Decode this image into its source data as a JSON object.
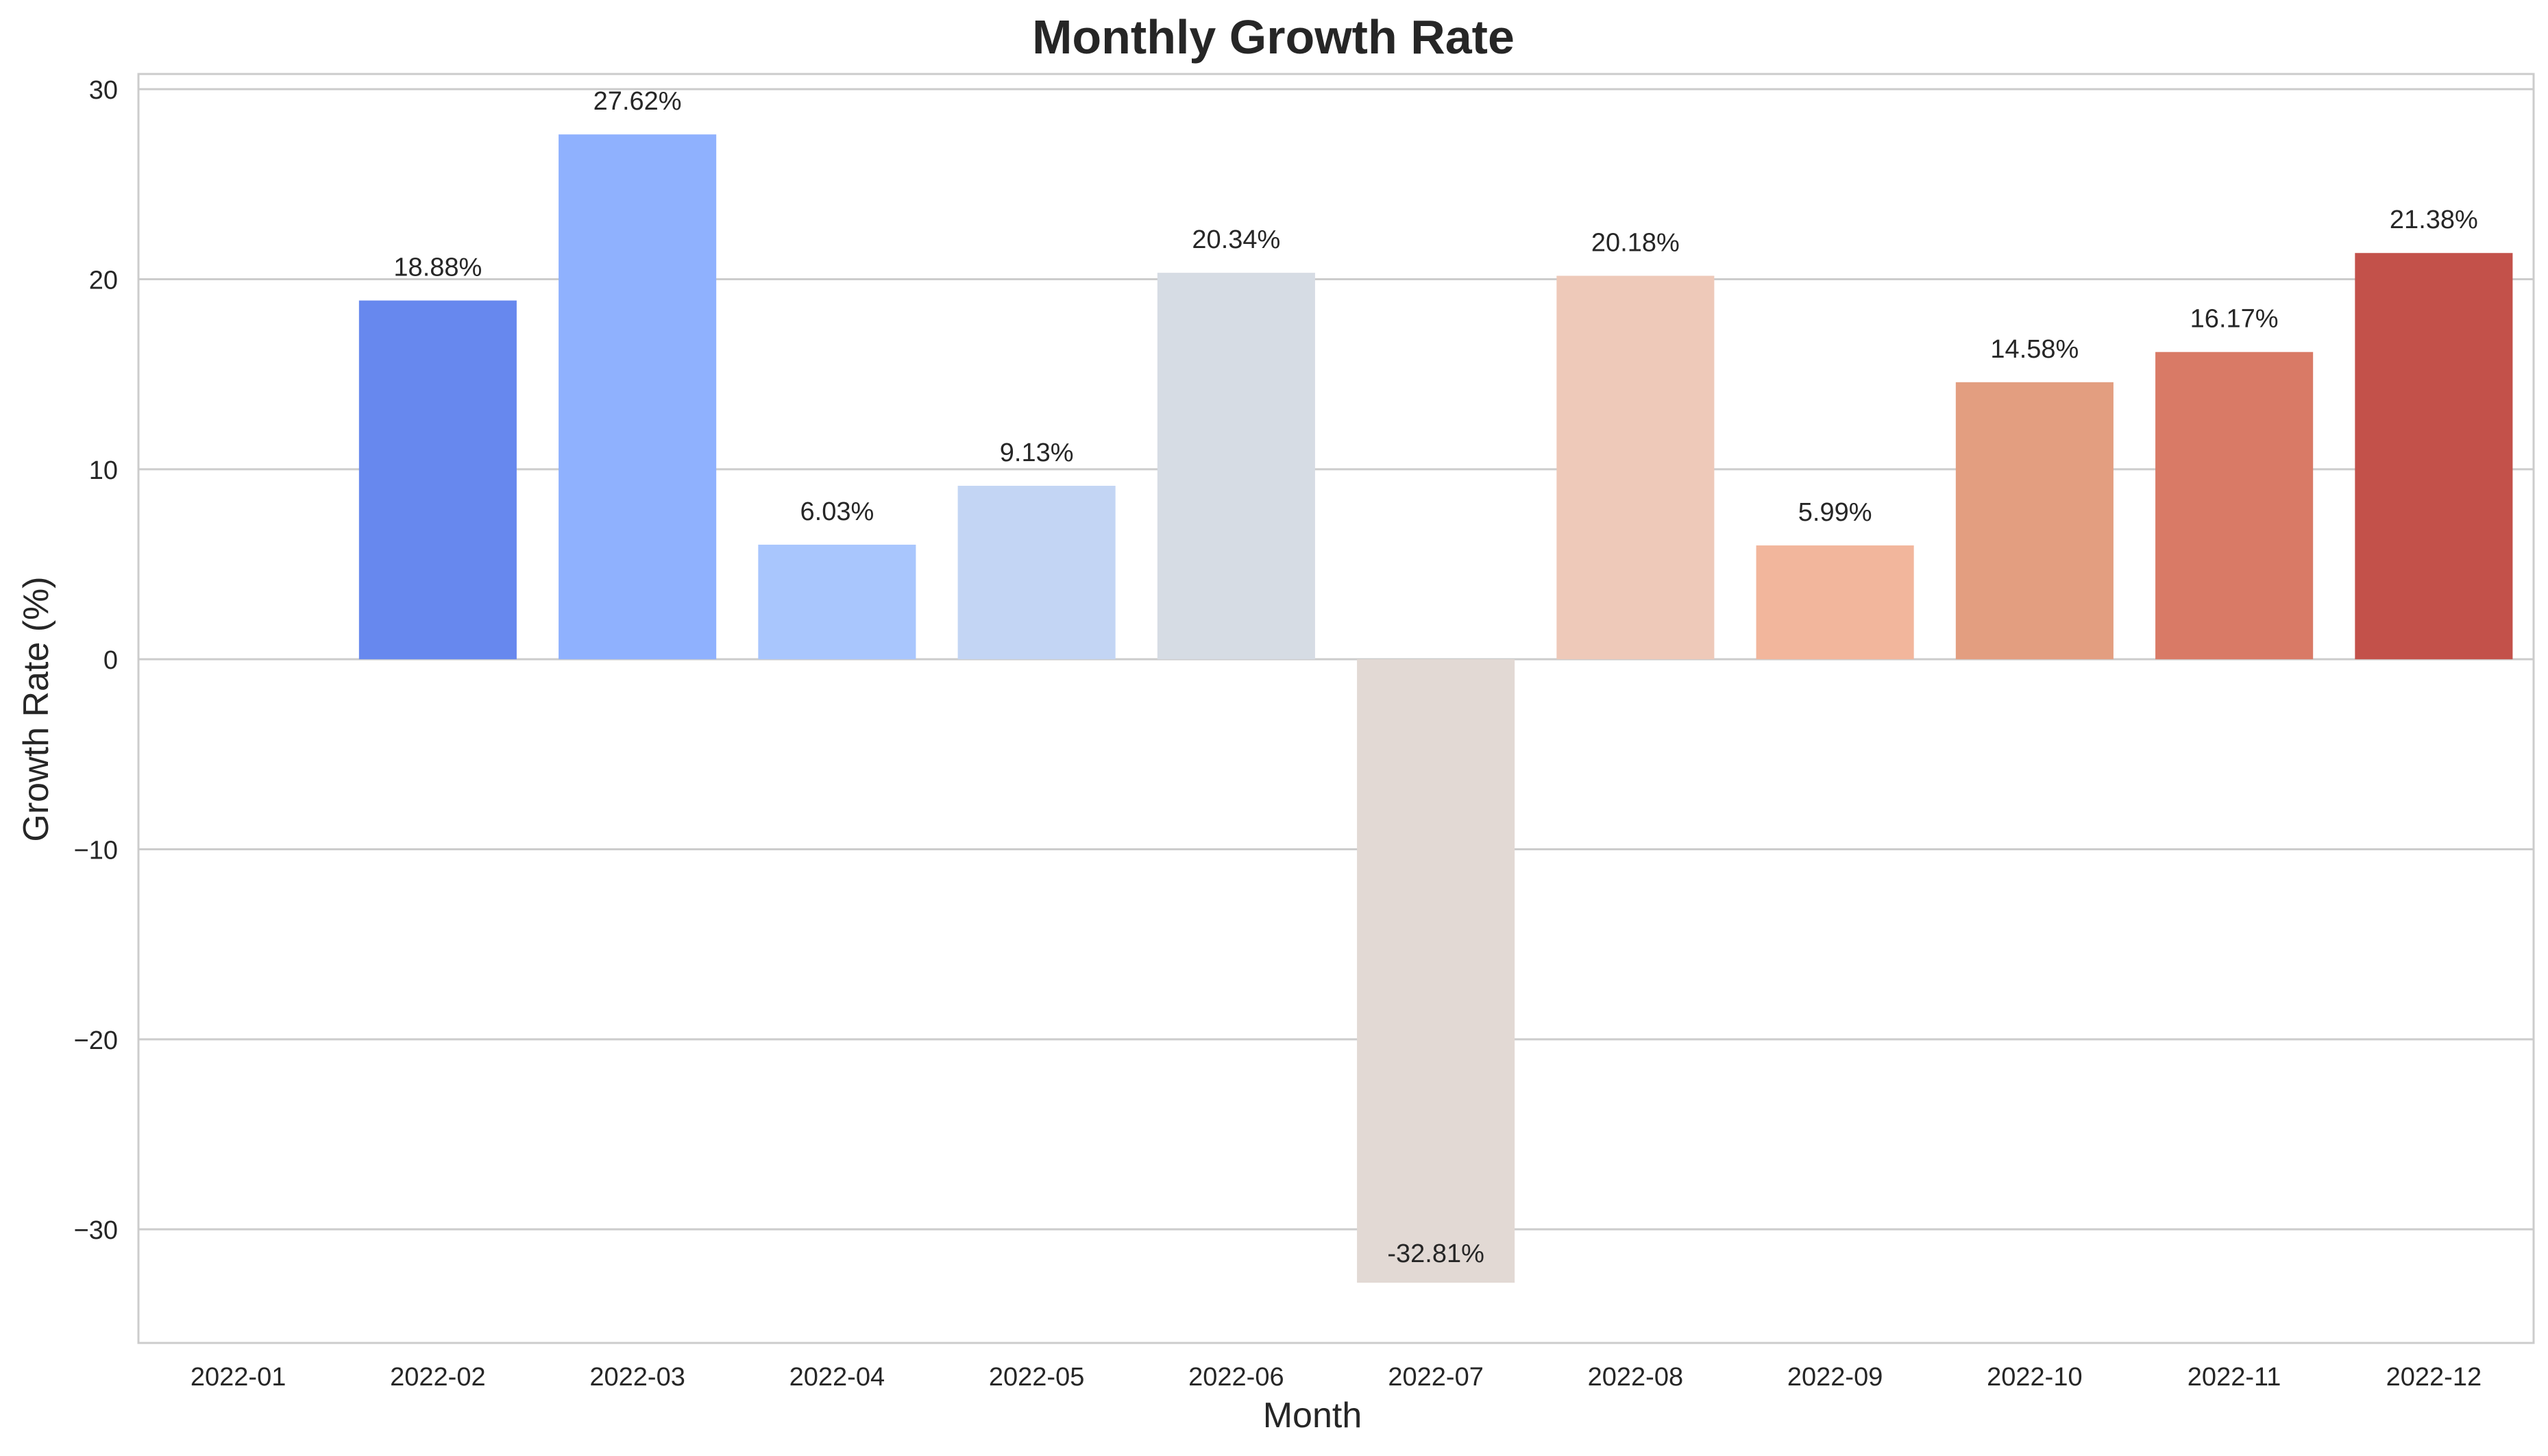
{
  "chart_data": {
    "type": "bar",
    "title": "Monthly Growth Rate",
    "xlabel": "Month",
    "ylabel": "Growth Rate (%)",
    "categories": [
      "2022-01",
      "2022-02",
      "2022-03",
      "2022-04",
      "2022-05",
      "2022-06",
      "2022-07",
      "2022-08",
      "2022-09",
      "2022-10",
      "2022-11",
      "2022-12"
    ],
    "values": [
      null,
      18.88,
      27.62,
      6.03,
      9.13,
      20.34,
      -32.81,
      20.18,
      5.99,
      14.58,
      16.17,
      21.38
    ],
    "data_labels": [
      "",
      "18.88%",
      "27.62%",
      "6.03%",
      "9.13%",
      "20.34%",
      "-32.81%",
      "20.18%",
      "5.99%",
      "14.58%",
      "16.17%",
      "21.38%"
    ],
    "colors": [
      "#6788ee",
      "#6788ee",
      "#8fb1fe",
      "#a9c6fd",
      "#c3d5f4",
      "#d6dce4",
      "#e2d9d4",
      "#eec9b9",
      "#f2b69c",
      "#e39e80",
      "#d97a66",
      "#c3514a"
    ],
    "ylim": [
      -35.98,
      30.8
    ],
    "yticks": [
      -30,
      -20,
      -10,
      0,
      10,
      20,
      30
    ],
    "ytick_labels": [
      "−30",
      "−20",
      "−10",
      "0",
      "10",
      "20",
      "30"
    ],
    "grid": true,
    "legend": "none"
  }
}
